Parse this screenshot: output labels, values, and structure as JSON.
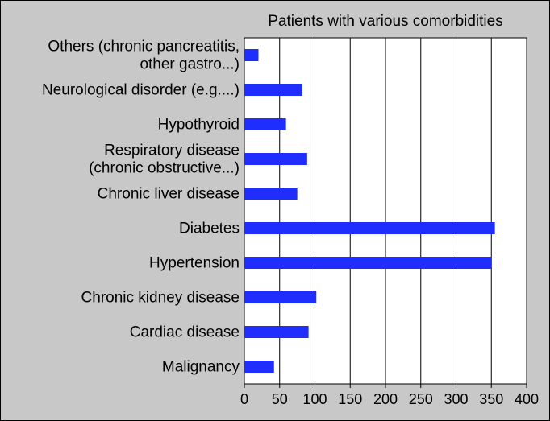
{
  "chart_data": {
    "type": "bar",
    "orientation": "horizontal",
    "title": "Patients with various comorbidities",
    "xlabel": "",
    "ylabel": "",
    "xlim": [
      0,
      400
    ],
    "xticks": [
      0,
      50,
      100,
      150,
      200,
      250,
      300,
      350,
      400
    ],
    "grid": "vertical",
    "bar_color": "#1f2eff",
    "categories": [
      [
        "Others (chronic pancreatitis,",
        "other gastro...)"
      ],
      [
        "Neurological disorder (e.g....)"
      ],
      [
        "Hypothyroid"
      ],
      [
        "Respiratory disease",
        "(chronic obstructive...)"
      ],
      [
        "Chronic liver disease"
      ],
      [
        "Diabetes"
      ],
      [
        "Hypertension"
      ],
      [
        "Chronic kidney disease"
      ],
      [
        "Cardiac disease"
      ],
      [
        "Malignancy"
      ]
    ],
    "values": [
      20,
      82,
      59,
      89,
      75,
      355,
      350,
      102,
      91,
      42
    ]
  }
}
